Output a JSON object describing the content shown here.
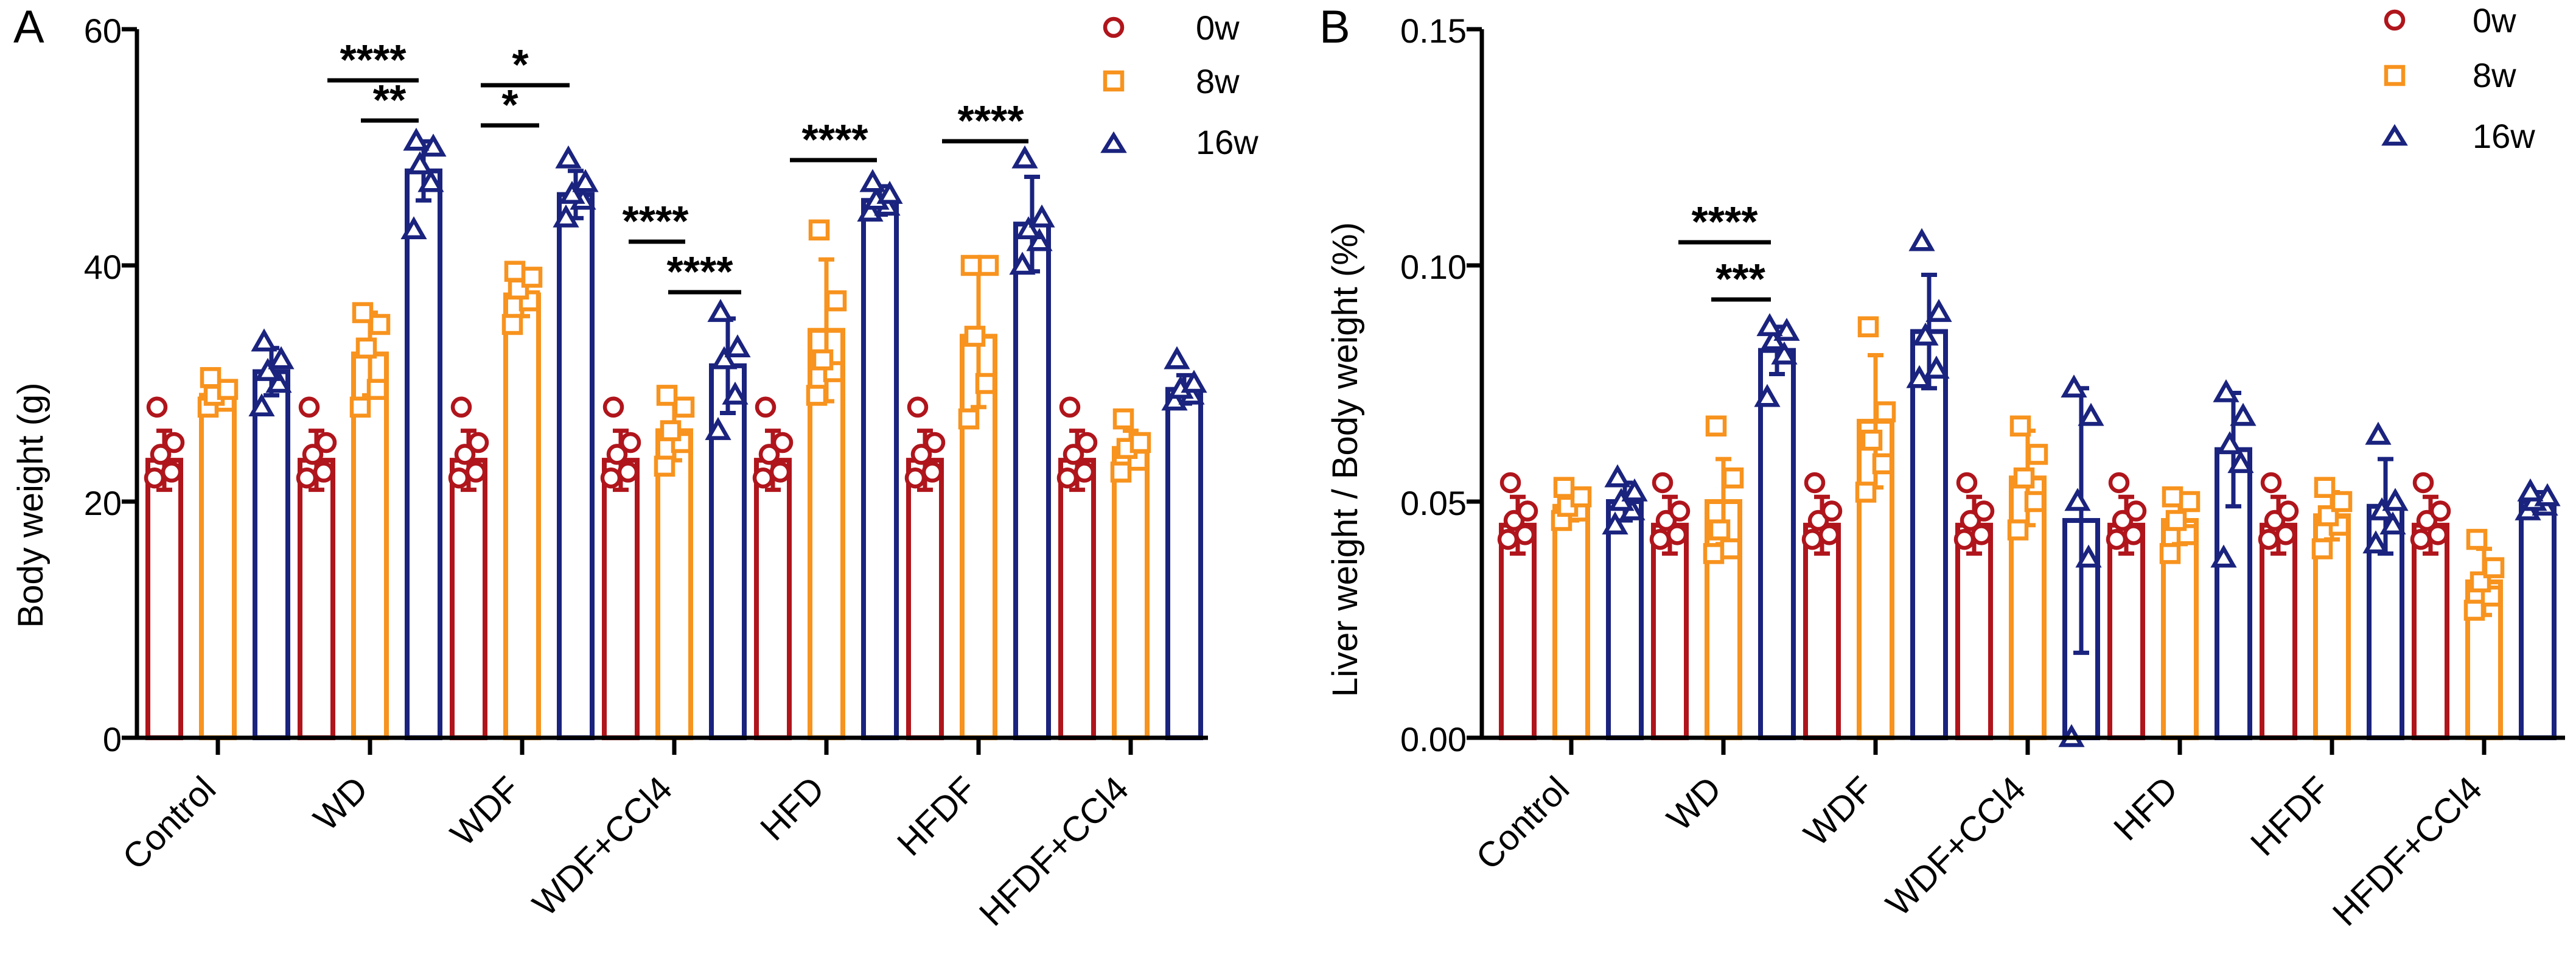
{
  "chart_data": [
    {
      "panel": "A",
      "type": "bar",
      "ylabel": "Body weight (g)",
      "xlabel": "",
      "ylim": [
        0,
        60
      ],
      "yticks": [
        0,
        20,
        40,
        60
      ],
      "categories": [
        "Control",
        "WD",
        "WDF",
        "WDF+CCl4",
        "HFD",
        "HFDF",
        "HFDF+CCl4"
      ],
      "series": [
        {
          "name": "0w",
          "marker": "circle",
          "color": "#B0151C",
          "values": [
            23.5,
            23.5,
            23.5,
            23.5,
            23.5,
            23.5,
            23.5
          ],
          "sd": [
            2.5,
            2.5,
            2.5,
            2.5,
            2.5,
            2.5,
            2.5
          ],
          "points": [
            [
              22,
              22.5,
              24,
              25,
              28
            ],
            [
              22,
              22.5,
              24,
              25,
              28
            ],
            [
              22,
              22.5,
              24,
              25,
              28
            ],
            [
              22,
              22.5,
              24,
              25,
              28
            ],
            [
              22,
              22.5,
              24,
              25,
              28
            ],
            [
              22,
              22.5,
              24,
              25,
              28
            ],
            [
              22,
              22.5,
              24,
              25,
              28
            ]
          ]
        },
        {
          "name": "8w",
          "marker": "square",
          "color": "#F7931E",
          "values": [
            29,
            32.5,
            37.5,
            26,
            34.5,
            34,
            24.5
          ],
          "sd": [
            1.2,
            3.5,
            1.8,
            2.5,
            6,
            6,
            1.5
          ],
          "points": [
            [
              28,
              28.5,
              29,
              29.5,
              30.5
            ],
            [
              28,
              29.5,
              33,
              35,
              36
            ],
            [
              35,
              37,
              38,
              39,
              39.5
            ],
            [
              23,
              25,
              26,
              28,
              29
            ],
            [
              29,
              31,
              32,
              37,
              43
            ],
            [
              27,
              30,
              34,
              40,
              40
            ],
            [
              22.5,
              23.5,
              24.5,
              25,
              27
            ]
          ]
        },
        {
          "name": "16w",
          "marker": "triangle",
          "color": "#1A237E",
          "values": [
            31,
            48,
            46,
            31.5,
            45.5,
            43.5,
            29.5
          ],
          "sd": [
            2,
            2.5,
            2,
            4,
            1.2,
            4,
            1.2
          ],
          "points": [
            [
              28,
              30,
              31,
              32,
              33.5
            ],
            [
              43,
              47,
              48.5,
              50,
              50.5
            ],
            [
              44,
              45.5,
              46,
              47,
              49
            ],
            [
              26,
              29,
              32,
              33,
              36
            ],
            [
              44.5,
              45,
              45.5,
              46,
              47
            ],
            [
              40,
              42,
              43,
              44,
              49
            ],
            [
              28.5,
              29,
              29.5,
              30,
              32
            ]
          ]
        }
      ],
      "significance": [
        {
          "category": "WD",
          "label": "****"
        },
        {
          "category": "WD",
          "label": "**"
        },
        {
          "category": "WDF",
          "label": "*"
        },
        {
          "category": "WDF",
          "label": "*"
        },
        {
          "category": "WDF+CCl4",
          "label": "****"
        },
        {
          "category": "WDF+CCl4",
          "label": "****"
        },
        {
          "category": "HFD",
          "label": "****"
        },
        {
          "category": "HFDF",
          "label": "****"
        }
      ],
      "legend": [
        "0w",
        "8w",
        "16w"
      ],
      "legend_position": "top-right"
    },
    {
      "panel": "B",
      "type": "bar",
      "ylabel": "Liver weight / Body weight (%)",
      "xlabel": "",
      "ylim": [
        0,
        0.15
      ],
      "yticks": [
        "0.00",
        "0.05",
        "0.10",
        "0.15"
      ],
      "categories": [
        "Control",
        "WD",
        "WDF",
        "WDF+CCl4",
        "HFD",
        "HFDF",
        "HFDF+CCl4"
      ],
      "series": [
        {
          "name": "0w",
          "marker": "circle",
          "color": "#B0151C",
          "values": [
            0.045,
            0.045,
            0.045,
            0.045,
            0.045,
            0.045,
            0.045
          ],
          "sd": [
            0.006,
            0.006,
            0.006,
            0.006,
            0.006,
            0.006,
            0.006
          ],
          "points": [
            [
              0.042,
              0.043,
              0.046,
              0.048,
              0.054
            ],
            [
              0.042,
              0.043,
              0.046,
              0.048,
              0.054
            ],
            [
              0.042,
              0.043,
              0.046,
              0.048,
              0.054
            ],
            [
              0.042,
              0.043,
              0.046,
              0.048,
              0.054
            ],
            [
              0.042,
              0.043,
              0.046,
              0.048,
              0.054
            ],
            [
              0.042,
              0.043,
              0.046,
              0.048,
              0.054
            ],
            [
              0.042,
              0.043,
              0.046,
              0.048,
              0.054
            ]
          ]
        },
        {
          "name": "8w",
          "marker": "square",
          "color": "#F7931E",
          "values": [
            0.049,
            0.05,
            0.067,
            0.055,
            0.046,
            0.047,
            0.033
          ],
          "sd": [
            0.003,
            0.009,
            0.014,
            0.01,
            0.005,
            0.005,
            0.007
          ],
          "points": [
            [
              0.046,
              0.048,
              0.049,
              0.051,
              0.053
            ],
            [
              0.039,
              0.04,
              0.044,
              0.055,
              0.066
            ],
            [
              0.052,
              0.058,
              0.063,
              0.069,
              0.087
            ],
            [
              0.044,
              0.05,
              0.055,
              0.06,
              0.066
            ],
            [
              0.039,
              0.043,
              0.046,
              0.05,
              0.051
            ],
            [
              0.04,
              0.045,
              0.047,
              0.05,
              0.053
            ],
            [
              0.027,
              0.03,
              0.033,
              0.036,
              0.042
            ]
          ]
        },
        {
          "name": "16w",
          "marker": "triangle",
          "color": "#1A237E",
          "values": [
            0.05,
            0.082,
            0.086,
            0.046,
            0.061,
            0.049,
            0.05
          ],
          "sd": [
            0.004,
            0.005,
            0.012,
            0.028,
            0.012,
            0.01,
            0.002
          ],
          "points": [
            [
              0.045,
              0.048,
              0.05,
              0.052,
              0.055
            ],
            [
              0.072,
              0.081,
              0.084,
              0.086,
              0.087
            ],
            [
              0.076,
              0.078,
              0.085,
              0.09,
              0.105
            ],
            [
              0.0,
              0.038,
              0.05,
              0.068,
              0.074
            ],
            [
              0.038,
              0.058,
              0.062,
              0.068,
              0.073
            ],
            [
              0.041,
              0.045,
              0.048,
              0.05,
              0.064
            ],
            [
              0.048,
              0.049,
              0.05,
              0.051,
              0.052
            ]
          ]
        }
      ],
      "significance": [
        {
          "category": "WD",
          "label": "****"
        },
        {
          "category": "WD",
          "label": "***"
        }
      ],
      "legend": [
        "0w",
        "8w",
        "16w"
      ],
      "legend_position": "top-right"
    }
  ]
}
